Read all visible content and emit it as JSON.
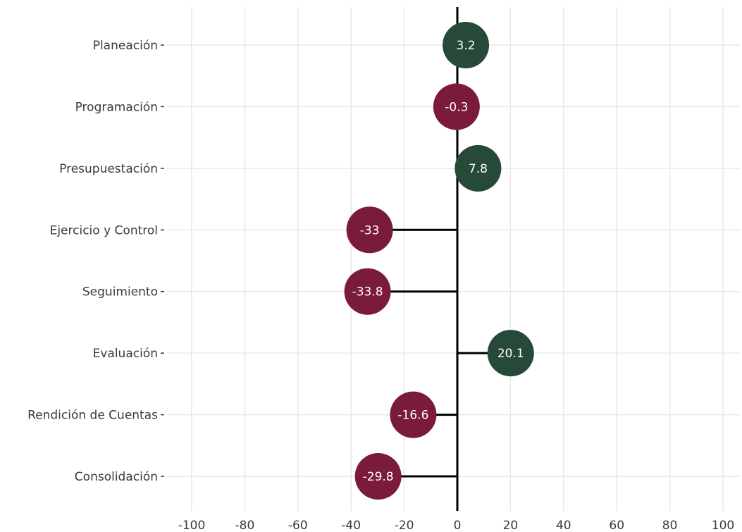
{
  "chart_data": {
    "type": "lollipop",
    "title": "",
    "xlabel": "",
    "ylabel": "",
    "xlim": [
      -100,
      100
    ],
    "x_ticks": [
      -100,
      -80,
      -60,
      -40,
      -20,
      0,
      20,
      40,
      60,
      80,
      100
    ],
    "grid": true,
    "categories": [
      "Planeación",
      "Programación",
      "Presupuestación",
      "Ejercicio y Control",
      "Seguimiento",
      "Evaluación",
      "Rendición de Cuentas",
      "Consolidación"
    ],
    "values": [
      3.2,
      -0.3,
      7.8,
      -33,
      -33.8,
      20.1,
      -16.6,
      -29.8
    ],
    "labels": [
      "3.2",
      "-0.3",
      "7.8",
      "-33",
      "-33.8",
      "20.1",
      "-16.6",
      "-29.8"
    ],
    "colors": {
      "positive": "#264a37",
      "negative": "#7b1b3a",
      "stem": "#000000",
      "grid": "#e8e8e8"
    }
  }
}
